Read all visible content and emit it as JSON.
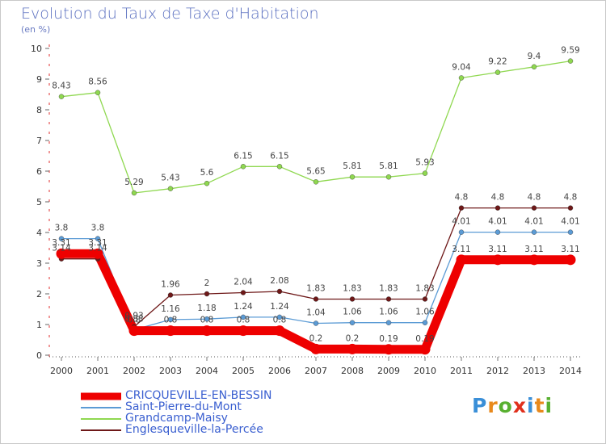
{
  "title": "Evolution du Taux de Taxe d'Habitation",
  "subtitle": "(en %)",
  "logo": {
    "letters": [
      "P",
      "r",
      "o",
      "x",
      "i",
      "t",
      "i"
    ],
    "colors": [
      "#3a8fd8",
      "#e8891c",
      "#58b030",
      "#e0301c",
      "#3a8fd8",
      "#e8891c",
      "#58b030"
    ]
  },
  "chart_data": {
    "type": "line",
    "x": [
      2000,
      2001,
      2002,
      2003,
      2004,
      2005,
      2006,
      2007,
      2008,
      2009,
      2010,
      2011,
      2012,
      2013,
      2014
    ],
    "y_ticks": [
      "0",
      "1",
      "2",
      "3",
      "4",
      "5",
      "6",
      "7",
      "8",
      "9",
      "10"
    ],
    "ylim": [
      0,
      10
    ],
    "series": [
      {
        "name": "CRICQUEVILLE-EN-BESSIN",
        "color": "#ee0000",
        "values": [
          3.31,
          3.31,
          0.8,
          0.8,
          0.8,
          0.8,
          0.8,
          0.2,
          0.2,
          0.19,
          0.19,
          3.11,
          3.11,
          3.11,
          3.11
        ],
        "labels": [
          "3.31",
          "3.31",
          "0.8",
          "0.8",
          "0.8",
          "0.8",
          "0.8",
          "0.2",
          "0.2",
          "0.19",
          "0.19",
          "3.11",
          "3.11",
          "3.11",
          "3.11"
        ]
      },
      {
        "name": "Saint-Pierre-du-Mont",
        "color": "#5b9bd5",
        "values": [
          3.8,
          3.8,
          0.83,
          1.16,
          1.18,
          1.24,
          1.24,
          1.04,
          1.06,
          1.06,
          1.06,
          4.01,
          4.01,
          4.01,
          4.01
        ],
        "labels": [
          "3.8",
          "3.8",
          "0.83",
          "1.16",
          "1.18",
          "1.24",
          "1.24",
          "1.04",
          "1.06",
          "1.06",
          "1.06",
          "4.01",
          "4.01",
          "4.01",
          "4.01"
        ]
      },
      {
        "name": "Grandcamp-Maisy",
        "color": "#8fd850",
        "values": [
          8.43,
          8.56,
          5.29,
          5.43,
          5.6,
          6.15,
          6.15,
          5.65,
          5.81,
          5.81,
          5.93,
          9.04,
          9.22,
          9.4,
          9.59
        ],
        "labels": [
          "8.43",
          "8.56",
          "5.29",
          "5.43",
          "5.6",
          "6.15",
          "6.15",
          "5.65",
          "5.81",
          "5.81",
          "5.93",
          "9.04",
          "9.22",
          "9.4",
          "9.59"
        ]
      },
      {
        "name": "Englesqueville-la-Percée",
        "color": "#6e1818",
        "values": [
          3.14,
          3.14,
          0.93,
          1.96,
          2,
          2.04,
          2.08,
          1.83,
          1.83,
          1.83,
          1.83,
          4.8,
          4.8,
          4.8,
          4.8
        ],
        "labels": [
          "3.14",
          "3.14",
          "0.93",
          "1.96",
          "2",
          "2.04",
          "2.08",
          "1.83",
          "1.83",
          "1.83",
          "1.83",
          "4.8",
          "4.8",
          "4.8",
          "4.8"
        ]
      }
    ]
  }
}
